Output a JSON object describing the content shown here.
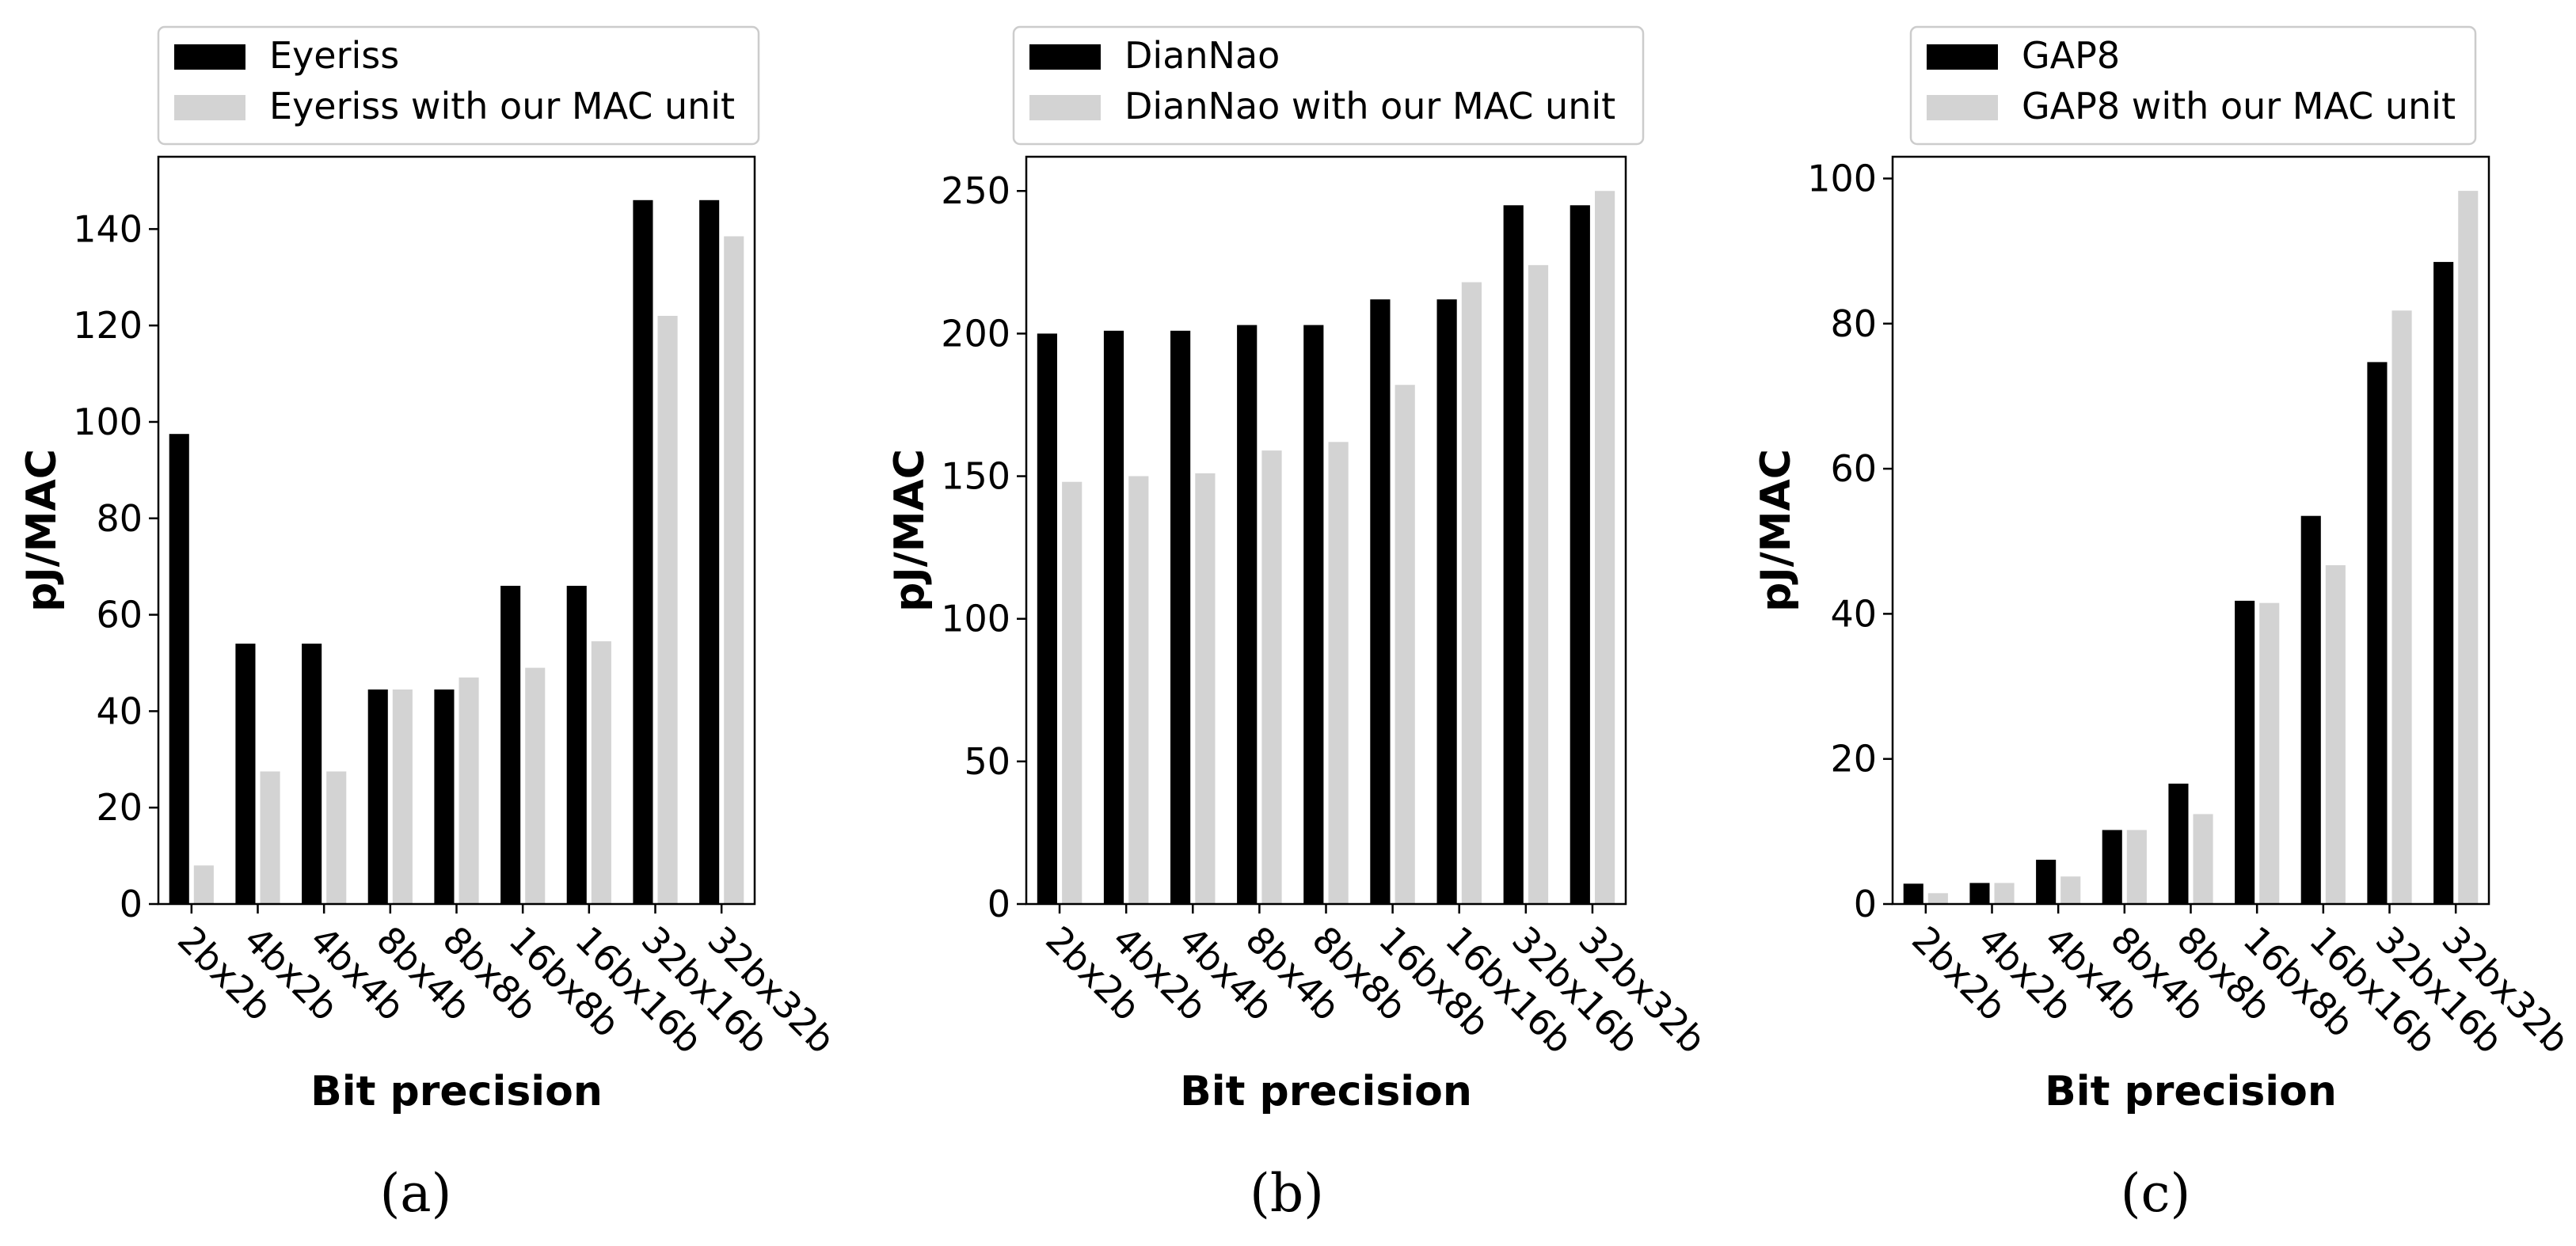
{
  "colors": {
    "baseline": "#000000",
    "ours": "#d3d3d3"
  },
  "chart_data": [
    {
      "type": "bar",
      "caption": "(a)",
      "xlabel": "Bit precision",
      "ylabel": "pJ/MAC",
      "ylim": [
        0,
        155
      ],
      "yticks": [
        0,
        20,
        40,
        60,
        80,
        100,
        120,
        140
      ],
      "legend_position": "top",
      "categories": [
        "2bx2b",
        "4bx2b",
        "4bx4b",
        "8bx4b",
        "8bx8b",
        "16bx8b",
        "16bx16b",
        "32bx16b",
        "32bx32b"
      ],
      "series": [
        {
          "name": "Eyeriss",
          "values": [
            97.5,
            54,
            54,
            44.5,
            44.5,
            66,
            66,
            146,
            146
          ]
        },
        {
          "name": "Eyeriss with our MAC unit",
          "values": [
            8,
            27.5,
            27.5,
            44.5,
            47,
            49,
            54.5,
            122,
            138.5
          ]
        }
      ]
    },
    {
      "type": "bar",
      "caption": "(b)",
      "xlabel": "Bit precision",
      "ylabel": "pJ/MAC",
      "ylim": [
        0,
        262
      ],
      "yticks": [
        0,
        50,
        100,
        150,
        200,
        250
      ],
      "legend_position": "top",
      "categories": [
        "2bx2b",
        "4bx2b",
        "4bx4b",
        "8bx4b",
        "8bx8b",
        "16bx8b",
        "16bx16b",
        "32bx16b",
        "32bx32b"
      ],
      "series": [
        {
          "name": "DianNao",
          "values": [
            200,
            201,
            201,
            203,
            203,
            212,
            212,
            245,
            245
          ]
        },
        {
          "name": "DianNao with our MAC unit",
          "values": [
            148,
            150,
            151,
            159,
            162,
            182,
            218,
            224,
            250
          ]
        }
      ]
    },
    {
      "type": "bar",
      "caption": "(c)",
      "xlabel": "Bit precision",
      "ylabel": "pJ/MAC",
      "ylim": [
        0,
        103
      ],
      "yticks": [
        0,
        20,
        40,
        60,
        80,
        100
      ],
      "legend_position": "top",
      "categories": [
        "2bx2b",
        "4bx2b",
        "4bx4b",
        "8bx4b",
        "8bx8b",
        "16bx8b",
        "16bx16b",
        "32bx16b",
        "32bx32b"
      ],
      "series": [
        {
          "name": "GAP8",
          "values": [
            2.8,
            2.9,
            6.1,
            10.2,
            16.6,
            41.8,
            53.5,
            74.7,
            88.5
          ]
        },
        {
          "name": "GAP8 with our MAC unit",
          "values": [
            1.5,
            2.9,
            3.8,
            10.2,
            12.4,
            41.5,
            46.7,
            81.8,
            98.3
          ]
        }
      ]
    }
  ]
}
